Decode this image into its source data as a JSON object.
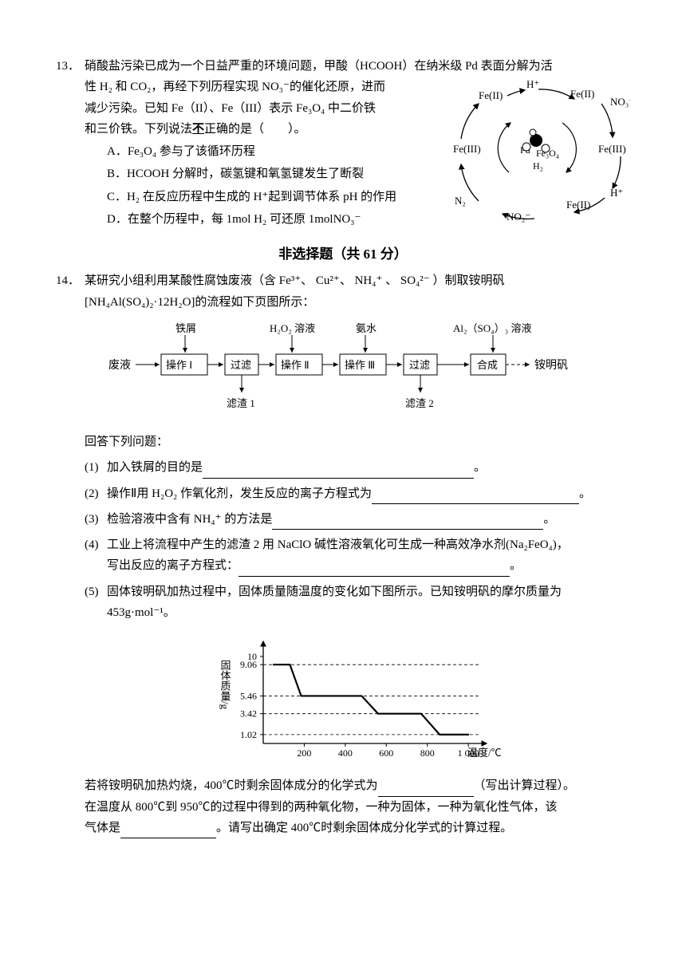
{
  "q13": {
    "num": "13．",
    "stem_l1": "硝酸盐污染已成为一个日益严重的环境问题，甲酸（HCOOH）在纳米级 Pd 表面分解为活",
    "stem_l2": "性 H₂ 和 CO₂，再经下列历程实现 NO₃⁻的催化还原，进而",
    "stem_l3": "减少污染。已知 Fe（II）、Fe（III）表示 Fe₃O₄ 中二价铁",
    "stem_l4": "和三价铁。下列说法",
    "stem_l4b": "正确的是（　　）。",
    "not_text": "不",
    "opts": {
      "A": "A．Fe₃O₄ 参与了该循环历程",
      "B": "B．HCOOH 分解时，碳氢键和氧氢键发生了断裂",
      "C": "C．H₂ 在反应历程中生成的 H⁺起到调节体系 pH 的作用",
      "D": "D．在整个历程中，每 1mol H₂ 可还原 1molNO₃⁻"
    },
    "diagram": {
      "labels": {
        "Hp": "H⁺",
        "Fe2": "Fe(II)",
        "Fe3": "Fe(III)",
        "NO3": "NO₃⁻",
        "NO2": "NO₂⁻",
        "N2": "N₂",
        "Pd": "Pd",
        "Fe3O4": "Fe₃O₄",
        "H2": "H₂"
      },
      "colors": {
        "line": "#000000",
        "bg": "#ffffff"
      }
    }
  },
  "section_title": "非选择题（共 61 分）",
  "q14": {
    "num": "14．",
    "stem_l1": "某研究小组利用某酸性腐蚀废液（含  Fe³⁺、  Cu²⁺、  NH₄⁺  、  SO₄²⁻  ）制取铵明矾",
    "stem_l2": "[NH₄Al(SO₄)₂·12H₂O]的流程如下页图所示：",
    "flow": {
      "top": {
        "t1": "铁屑",
        "t2": "H₂O₂ 溶液",
        "t3": "氨水",
        "t4": "Al₂（SO₄）₃ 溶液"
      },
      "boxes": {
        "b1": "操作 Ⅰ",
        "b2": "过滤",
        "b3": "操作 Ⅱ",
        "b4": "操作 Ⅲ",
        "b5": "过滤",
        "b6": "合成"
      },
      "in_label": "废液",
      "out_label": "铵明矾",
      "bottom": {
        "d1": "滤渣 1",
        "d2": "滤渣 2"
      }
    },
    "ans_intro": "回答下列问题：",
    "subs": {
      "s1n": "(1)",
      "s1": "加入铁屑的目的是",
      "s2n": "(2)",
      "s2": "操作Ⅱ用 H₂O₂ 作氧化剂，发生反应的离子方程式为",
      "s3n": "(3)",
      "s3": "检验溶液中含有 NH₄⁺ 的方法是",
      "s4n": "(4)",
      "s4a": "工业上将流程中产生的滤渣 2 用 NaClO 碱性溶液氧化可生成一种高效净水剂(Na₂FeO₄)，",
      "s4b": "写出反应的离子方程式：",
      "s5n": "(5)",
      "s5a": "固体铵明矾加热过程中，固体质量随温度的变化如下图所示。已知铵明矾的摩尔质量为",
      "s5b": "453g·mol⁻¹。"
    },
    "chart": {
      "ylabel": "固体质量/g",
      "xlabel": "温度/℃",
      "yticks": [
        "1.02",
        "3.42",
        "5.46",
        "9.06",
        "10"
      ],
      "ytick_vals": [
        1.02,
        3.42,
        5.46,
        9.06,
        10
      ],
      "xticks": [
        "200",
        "400",
        "600",
        "800",
        "1 000"
      ],
      "xtick_vals": [
        200,
        400,
        600,
        800,
        1000
      ],
      "series": [
        {
          "x": 50,
          "y": 9.06
        },
        {
          "x": 130,
          "y": 9.06
        },
        {
          "x": 185,
          "y": 5.46
        },
        {
          "x": 480,
          "y": 5.46
        },
        {
          "x": 560,
          "y": 3.42
        },
        {
          "x": 770,
          "y": 3.42
        },
        {
          "x": 860,
          "y": 1.02
        },
        {
          "x": 1000,
          "y": 1.02
        }
      ],
      "line_color": "#000000",
      "grid_color": "#000000",
      "xlim": [
        0,
        1050
      ],
      "ylim": [
        0,
        11
      ],
      "line_width": 2.2
    },
    "tail_l1a": "若将铵明矾加热灼烧，400℃时剩余固体成分的化学式为",
    "tail_l1b": "（写出计算过程）。",
    "tail_l2": "在温度从 800℃到 950℃的过程中得到的两种氧化物，一种为固体，一种为氧化性气体，该",
    "tail_l3a": "气体是",
    "tail_l3b": "。请写出确定 400℃时剩余固体成分化学式的计算过程。",
    "period": "。"
  }
}
